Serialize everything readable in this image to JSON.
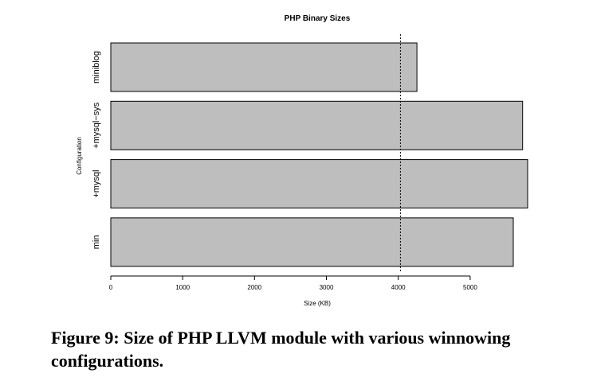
{
  "chart_data": {
    "type": "bar",
    "orientation": "horizontal",
    "title": "PHP Binary Sizes",
    "xlabel": "Size (KB)",
    "ylabel": "Configuration",
    "categories": [
      "min",
      "+mysql",
      "+mysql−sys",
      "miniblog"
    ],
    "values": [
      5600,
      5800,
      5730,
      4260
    ],
    "xlim": [
      0,
      5800
    ],
    "xticks": [
      0,
      1000,
      2000,
      3000,
      4000,
      5000
    ],
    "reference_line": {
      "value": 4030,
      "style": "dotted"
    },
    "bar_color": "#bebebe",
    "grid": false,
    "legend": "none"
  },
  "caption": {
    "text": "Figure 9: Size of PHP LLVM module with various winnowing configurations."
  }
}
